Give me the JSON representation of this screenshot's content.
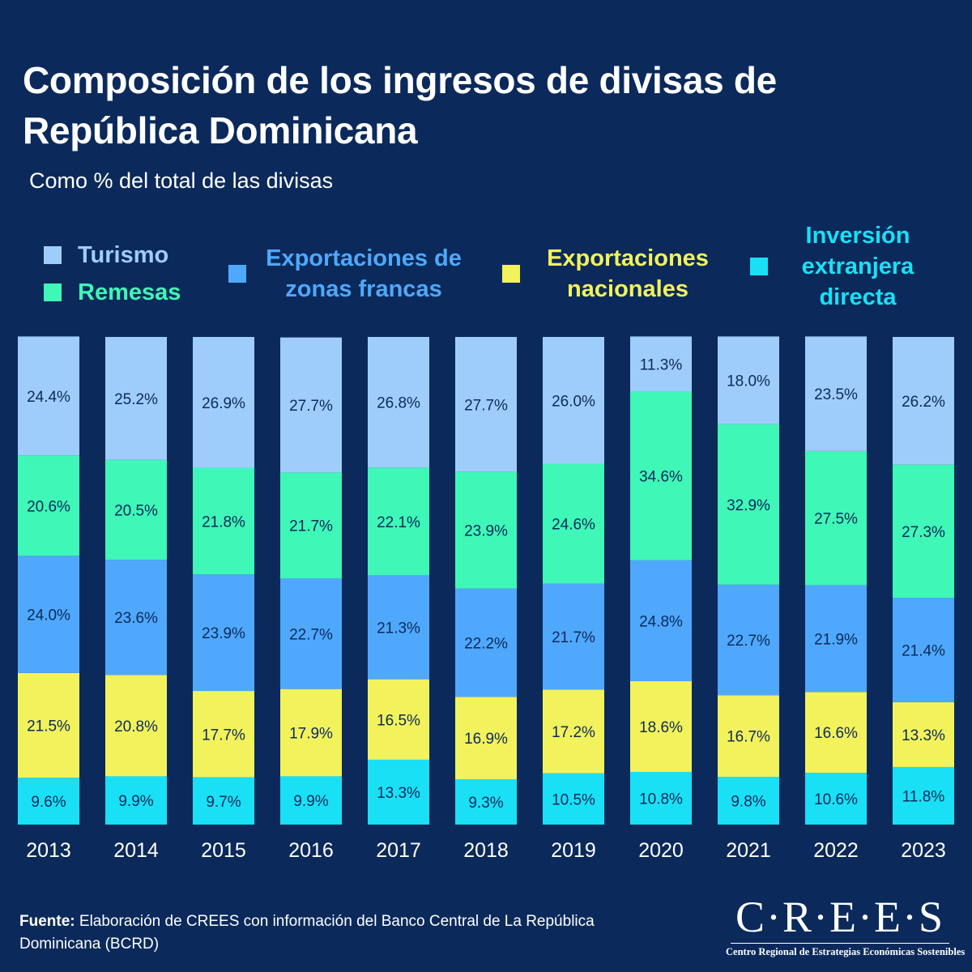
{
  "header": {
    "title": "Composición de los ingresos de divisas de República Dominicana",
    "subtitle": "Como % del total de las divisas"
  },
  "legend": {
    "turismo": "Turismo",
    "remesas": "Remesas",
    "zonas_francas": "Exportaciones de zonas francas",
    "nacionales": "Exportaciones nacionales",
    "ied": "Inversión extranjera directa"
  },
  "colors": {
    "background": "#0b2a5b",
    "turismo": "#9fcdfb",
    "remesas": "#3ff7b7",
    "zonas_francas": "#4fa8fb",
    "nacionales": "#f2f25c",
    "ied": "#19e0f5",
    "turismo_text": "#9fcdfb",
    "remesas_text": "#3ff7b7",
    "zonas_francas_text": "#4fa8fb",
    "nacionales_text": "#f2f25c",
    "ied_text": "#19e0f5"
  },
  "chart_data": {
    "type": "bar",
    "stacked": true,
    "categories": [
      "2013",
      "2014",
      "2015",
      "2016",
      "2017",
      "2018",
      "2019",
      "2020",
      "2021",
      "2022",
      "2023"
    ],
    "unit": "%",
    "series": [
      {
        "name": "Inversión extranjera directa",
        "color": "#19e0f5",
        "values": [
          9.6,
          9.9,
          9.7,
          9.9,
          13.3,
          9.3,
          10.5,
          10.8,
          9.8,
          10.6,
          11.8
        ],
        "labels": [
          "9.6%",
          "9.9%",
          "9.7%",
          "9.9%",
          "13.3%",
          "9.3%",
          "10.5%",
          "10.8%",
          "9.8%",
          "10.6%",
          "11.8%"
        ]
      },
      {
        "name": "Exportaciones nacionales",
        "color": "#f2f25c",
        "values": [
          21.5,
          20.8,
          17.7,
          17.9,
          16.5,
          16.9,
          17.2,
          18.6,
          16.7,
          16.6,
          13.3
        ],
        "labels": [
          "21.5%",
          "20.8%",
          "17.7%",
          "17.9%",
          "16.5%",
          "16.9%",
          "17.2%",
          "18.6%",
          "16.7%",
          "16.6%",
          "13.3%"
        ]
      },
      {
        "name": "Exportaciones de zonas francas",
        "color": "#4fa8fb",
        "values": [
          24.0,
          23.6,
          23.9,
          22.7,
          21.3,
          22.2,
          21.7,
          24.8,
          22.7,
          21.9,
          21.4
        ],
        "labels": [
          "24.0%",
          "23.6%",
          "23.9%",
          "22.7%",
          "21.3%",
          "22.2%",
          "21.7%",
          "24.8%",
          "22.7%",
          "21.9%",
          "21.4%"
        ]
      },
      {
        "name": "Remesas",
        "color": "#3ff7b7",
        "values": [
          20.6,
          20.5,
          21.8,
          21.7,
          22.1,
          23.9,
          24.6,
          34.6,
          32.9,
          27.5,
          27.3
        ],
        "labels": [
          "20.6%",
          "20.5%",
          "21.8%",
          "21.7%",
          "22.1%",
          "23.9%",
          "24.6%",
          "34.6%",
          "32.9%",
          "27.5%",
          "27.3%"
        ]
      },
      {
        "name": "Turismo",
        "color": "#9fcdfb",
        "values": [
          24.4,
          25.2,
          26.9,
          27.7,
          26.8,
          27.7,
          26.0,
          11.3,
          18.0,
          23.5,
          26.2
        ],
        "labels": [
          "24.4%",
          "25.2%",
          "26.9%",
          "27.7%",
          "26.8%",
          "27.7%",
          "26.0%",
          "11.3%",
          "18.0%",
          "23.5%",
          "26.2%"
        ]
      }
    ],
    "ylim": [
      0,
      100
    ],
    "grid": false,
    "legend_position": "top"
  },
  "footer": {
    "source_bold": "Fuente:",
    "source_text": "Elaboración de CREES con información del Banco Central de La República Dominicana (BCRD)",
    "logo_word": "C·R·E·E·S",
    "logo_tagline": "Centro Regional de Estrategias Económicas Sostenibles"
  }
}
